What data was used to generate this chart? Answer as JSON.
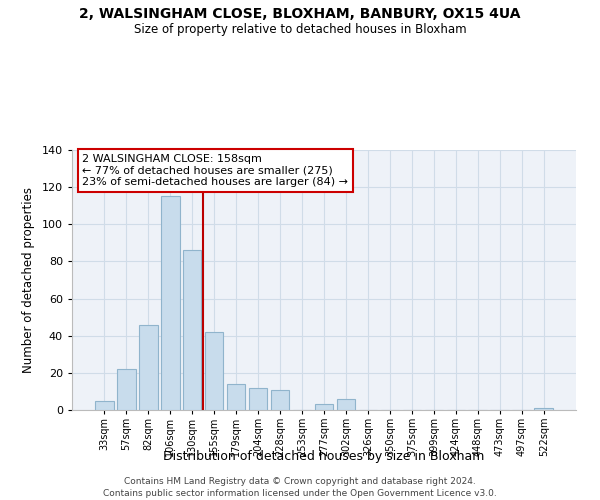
{
  "title": "2, WALSINGHAM CLOSE, BLOXHAM, BANBURY, OX15 4UA",
  "subtitle": "Size of property relative to detached houses in Bloxham",
  "xlabel": "Distribution of detached houses by size in Bloxham",
  "ylabel": "Number of detached properties",
  "bar_color": "#c8dcec",
  "bar_edge_color": "#90b4cc",
  "bin_labels": [
    "33sqm",
    "57sqm",
    "82sqm",
    "106sqm",
    "130sqm",
    "155sqm",
    "179sqm",
    "204sqm",
    "228sqm",
    "253sqm",
    "277sqm",
    "302sqm",
    "326sqm",
    "350sqm",
    "375sqm",
    "399sqm",
    "424sqm",
    "448sqm",
    "473sqm",
    "497sqm",
    "522sqm"
  ],
  "bar_heights": [
    5,
    22,
    46,
    115,
    86,
    42,
    14,
    12,
    11,
    0,
    3,
    6,
    0,
    0,
    0,
    0,
    0,
    0,
    0,
    0,
    1
  ],
  "ylim": [
    0,
    140
  ],
  "yticks": [
    0,
    20,
    40,
    60,
    80,
    100,
    120,
    140
  ],
  "vline_color": "#bb0000",
  "annotation_title": "2 WALSINGHAM CLOSE: 158sqm",
  "annotation_line1": "← 77% of detached houses are smaller (275)",
  "annotation_line2": "23% of semi-detached houses are larger (84) →",
  "annotation_box_color": "#ffffff",
  "annotation_box_edge": "#cc0000",
  "footer_line1": "Contains HM Land Registry data © Crown copyright and database right 2024.",
  "footer_line2": "Contains public sector information licensed under the Open Government Licence v3.0.",
  "grid_color": "#d0dce8",
  "background_color": "#eef2f8"
}
